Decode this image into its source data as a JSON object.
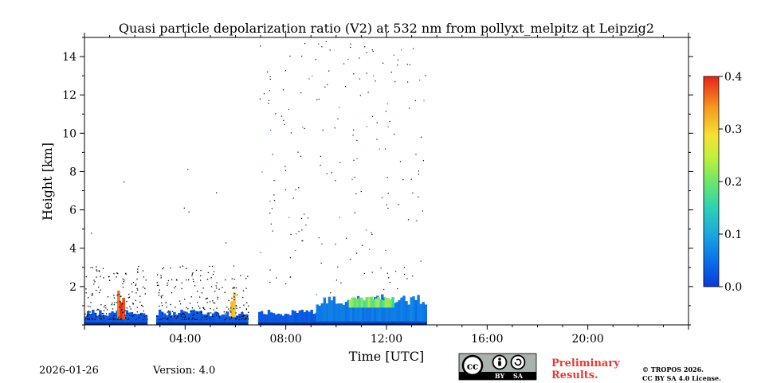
{
  "chart_data": {
    "type": "heatmap",
    "title": "Quasi particle depolarization ratio (V2) at 532 nm from pollyxt_melpitz at Leipzig2",
    "xlabel": "Time [UTC]",
    "ylabel": "Height [km]",
    "xlim_hours": [
      0,
      24
    ],
    "ylim_km": [
      0,
      15
    ],
    "x_tick_labels": [
      {
        "hour": 4,
        "label": "04:00"
      },
      {
        "hour": 8,
        "label": "08:00"
      },
      {
        "hour": 12,
        "label": "12:00"
      },
      {
        "hour": 16,
        "label": "16:00"
      },
      {
        "hour": 20,
        "label": "20:00"
      }
    ],
    "y_ticks": [
      2,
      4,
      6,
      8,
      10,
      12,
      14
    ],
    "colorbar": {
      "min": 0.0,
      "max": 0.4,
      "ticks": [
        "0.0",
        "0.1",
        "0.2",
        "0.3",
        "0.4"
      ],
      "colormap": "jet"
    },
    "data_segments_hours": [
      [
        0.0,
        2.5
      ],
      [
        2.85,
        6.5
      ],
      [
        6.9,
        13.6
      ]
    ],
    "features": [
      {
        "name": "near-surface layer",
        "hours": [
          0.0,
          13.6
        ],
        "height_km": [
          0.0,
          0.8
        ],
        "value": 0.03
      },
      {
        "name": "boundary layer aerosol",
        "hours": [
          9.2,
          13.6
        ],
        "height_km": [
          0.2,
          1.6
        ],
        "value": 0.06
      },
      {
        "name": "enhanced depolarization",
        "hours": [
          10.5,
          12.3
        ],
        "height_km": [
          0.9,
          1.5
        ],
        "value": 0.2
      },
      {
        "name": "high depol plume",
        "hours": [
          1.3,
          1.6
        ],
        "height_km": [
          0.3,
          1.8
        ],
        "value": 0.35
      },
      {
        "name": "high depol plume",
        "hours": [
          5.8,
          6.0
        ],
        "height_km": [
          0.4,
          1.7
        ],
        "value": 0.35
      }
    ]
  },
  "footer": {
    "date": "2026-01-26",
    "version": "Version: 4.0",
    "license_badge": {
      "cc": "cc",
      "by": "BY",
      "sa": "SA"
    },
    "preliminary_line1": "Preliminary",
    "preliminary_line2": "Results.",
    "copyright_line1": "© TROPOS 2026.",
    "copyright_line2": "CC BY SA 4.0 License."
  }
}
